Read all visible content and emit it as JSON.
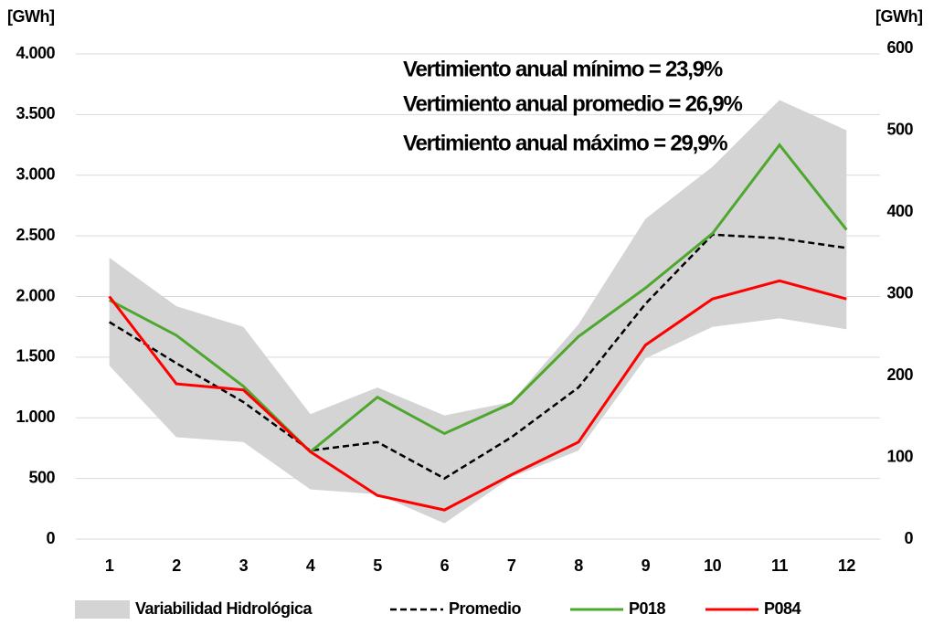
{
  "chart_data": {
    "type": "line",
    "ylabel": "[GWh]",
    "y2label": "[GWh]",
    "categories": [
      "1",
      "2",
      "3",
      "4",
      "5",
      "6",
      "7",
      "8",
      "9",
      "10",
      "11",
      "12"
    ],
    "ylim": [
      0,
      4000
    ],
    "yticks": [
      {
        "value": 0,
        "label": "0"
      },
      {
        "value": 500,
        "label": "500"
      },
      {
        "value": 1000,
        "label": "1.000"
      },
      {
        "value": 1500,
        "label": "1.500"
      },
      {
        "value": 2000,
        "label": "2.000"
      },
      {
        "value": 2500,
        "label": "2.500"
      },
      {
        "value": 3000,
        "label": "3.000"
      },
      {
        "value": 3500,
        "label": "3.500"
      },
      {
        "value": 4000,
        "label": "4.000"
      }
    ],
    "y2lim": [
      0,
      600
    ],
    "y2ticks": [
      0,
      100,
      200,
      300,
      400,
      500,
      600
    ],
    "grid": true,
    "annotations": [
      "Vertimiento anual mínimo = 23,9%",
      "Vertimiento anual promedio = 26,9%",
      "Vertimiento anual máximo = 29,9%"
    ],
    "series": [
      {
        "name": "Variabilidad Hidrológica",
        "kind": "range",
        "color": "#d4d4d4",
        "low": [
          1430,
          840,
          800,
          410,
          370,
          130,
          510,
          730,
          1490,
          1750,
          1820,
          1730
        ],
        "values": [
          2320,
          1920,
          1750,
          1030,
          1250,
          1020,
          1130,
          1770,
          2640,
          3070,
          3620,
          3370
        ]
      },
      {
        "name": "Promedio",
        "kind": "dashed",
        "color": "#000000",
        "values": [
          1790,
          1450,
          1130,
          730,
          800,
          500,
          840,
          1250,
          1940,
          2510,
          2480,
          2400
        ]
      },
      {
        "name": "P018",
        "kind": "solid",
        "color": "#4ea72e",
        "values": [
          1970,
          1680,
          1260,
          720,
          1170,
          870,
          1120,
          1670,
          2070,
          2520,
          3250,
          2550
        ]
      },
      {
        "name": "P084",
        "kind": "solid",
        "color": "#ff0000",
        "values": [
          2000,
          1280,
          1230,
          720,
          360,
          240,
          530,
          800,
          1600,
          1980,
          2130,
          1980
        ]
      }
    ]
  }
}
